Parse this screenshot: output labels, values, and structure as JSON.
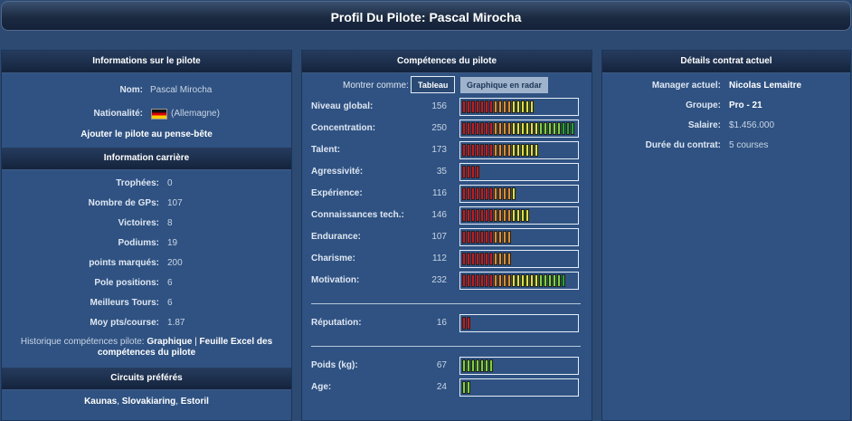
{
  "page": {
    "title": "Profil Du Pilote: Pascal Mirocha"
  },
  "pilot_info": {
    "header": "Informations sur le pilote",
    "name_label": "Nom:",
    "name_value": "Pascal Mirocha",
    "nationality_label": "Nationalité:",
    "nationality_value": "(Allemagne)",
    "watchlist_link": "Ajouter le pilote au pense-bête"
  },
  "career": {
    "header": "Information carrière",
    "rows": [
      {
        "label": "Trophées:",
        "value": "0"
      },
      {
        "label": "Nombre de GPs:",
        "value": "107"
      },
      {
        "label": "Victoires:",
        "value": "8"
      },
      {
        "label": "Podiums:",
        "value": "19"
      },
      {
        "label": "points marqués:",
        "value": "200"
      },
      {
        "label": "Pole positions:",
        "value": "6"
      },
      {
        "label": "Meilleurs Tours:",
        "value": "6"
      },
      {
        "label": "Moy pts/course:",
        "value": "1.87"
      }
    ],
    "history_prefix": "Historique compétences pilote:",
    "history_link1": "Graphique",
    "history_sep": " | ",
    "history_link2": "Feuille Excel des compétences du pilote"
  },
  "circuits": {
    "header": "Circuits préférés",
    "items": [
      "Kaunas",
      "Slovakiaring",
      "Estoril"
    ],
    "sep": ", "
  },
  "skills": {
    "header": "Compétences du pilote",
    "show_as_label": "Montrer comme:",
    "tab_table": "Tableau",
    "tab_radar": "Graphique en radar",
    "bar_max": 250,
    "rows": [
      {
        "label": "Niveau global:",
        "value": 156
      },
      {
        "label": "Concentration:",
        "value": 250
      },
      {
        "label": "Talent:",
        "value": 173
      },
      {
        "label": "Agressivité:",
        "value": 35
      },
      {
        "label": "Expérience:",
        "value": 116
      },
      {
        "label": "Connaissances tech.:",
        "value": 146
      },
      {
        "label": "Endurance:",
        "value": 107
      },
      {
        "label": "Charisme:",
        "value": 112
      },
      {
        "label": "Motivation:",
        "value": 232
      }
    ],
    "reputation": {
      "label": "Réputation:",
      "value": 16
    },
    "physical": [
      {
        "label": "Poids (kg):",
        "value": 67
      },
      {
        "label": "Age:",
        "value": 24
      }
    ],
    "colors": {
      "red": "#e01010",
      "orange": "#f08a10",
      "yellow": "#e6e610",
      "green": "#22a822",
      "lime": "#7ed81c"
    }
  },
  "contract": {
    "header": "Détails contrat actuel",
    "rows": [
      {
        "label": "Manager actuel:",
        "value": "Nicolas Lemaitre"
      },
      {
        "label": "Groupe:",
        "value": "Pro - 21"
      },
      {
        "label": "Salaire:",
        "value": "$1.456.000"
      },
      {
        "label": "Durée du contrat:",
        "value": "5 courses"
      }
    ]
  }
}
